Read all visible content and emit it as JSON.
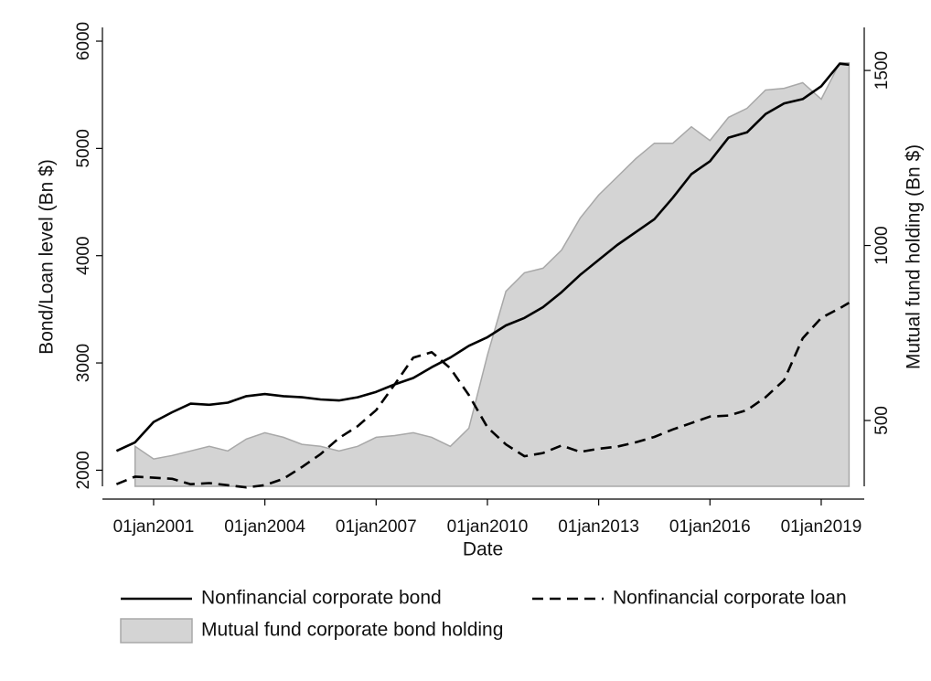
{
  "chart_data": {
    "type": "line",
    "x_label": "Date",
    "y_label": "Bond/Loan level (Bn $)",
    "y2_label": "Mutual fund holding (Bn $)",
    "x": [
      2000,
      2000.5,
      2001,
      2001.5,
      2002,
      2002.5,
      2003,
      2003.5,
      2004,
      2004.5,
      2005,
      2005.5,
      2006,
      2006.5,
      2007,
      2007.5,
      2008,
      2008.5,
      2009,
      2009.5,
      2010,
      2010.5,
      2011,
      2011.5,
      2012,
      2012.5,
      2013,
      2013.5,
      2014,
      2014.5,
      2015,
      2015.5,
      2016,
      2016.5,
      2017,
      2017.5,
      2018,
      2018.5,
      2019,
      2019.5,
      2019.75
    ],
    "xlim": [
      1999.62,
      2020.16
    ],
    "xticks": [
      {
        "value": 2001,
        "label": "01jan2001"
      },
      {
        "value": 2004,
        "label": "01jan2004"
      },
      {
        "value": 2007,
        "label": "01jan2007"
      },
      {
        "value": 2010,
        "label": "01jan2010"
      },
      {
        "value": 2013,
        "label": "01jan2013"
      },
      {
        "value": 2016,
        "label": "01jan2016"
      },
      {
        "value": 2019,
        "label": "01jan2019"
      }
    ],
    "ylim": [
      1850,
      6128
    ],
    "yticks": [
      2000,
      3000,
      4000,
      5000,
      6000
    ],
    "y2lim": [
      312,
      1623
    ],
    "y2ticks": [
      500,
      1000,
      1500
    ],
    "series": [
      {
        "name": "Nonfinancial corporate bond",
        "color": "#000000",
        "dash": "solid",
        "values": [
          2180,
          2260,
          2450,
          2540,
          2620,
          2610,
          2630,
          2690,
          2710,
          2690,
          2680,
          2660,
          2650,
          2680,
          2730,
          2800,
          2860,
          2960,
          3050,
          3160,
          3240,
          3350,
          3420,
          3520,
          3660,
          3820,
          3960,
          4100,
          4220,
          4340,
          4540,
          4760,
          4880,
          5100,
          5150,
          5320,
          5420,
          5460,
          5580,
          5790,
          5780
        ]
      },
      {
        "name": "Nonfinancial corporate loan",
        "color": "#000000",
        "dash": "dashed",
        "values": [
          1870,
          1940,
          1930,
          1920,
          1870,
          1880,
          1860,
          1840,
          1860,
          1920,
          2030,
          2150,
          2300,
          2410,
          2560,
          2800,
          3050,
          3100,
          2950,
          2700,
          2400,
          2240,
          2130,
          2160,
          2230,
          2170,
          2200,
          2220,
          2260,
          2310,
          2380,
          2440,
          2500,
          2510,
          2560,
          2680,
          2840,
          3230,
          3420,
          3510,
          3560
        ]
      },
      {
        "name": "Mutual fund corporate bond holding",
        "color": "#d4d4d4",
        "edge_color": "#a8a8a8",
        "fill": true,
        "axis": "y2",
        "values": [
          null,
          426,
          390,
          400,
          413,
          426,
          413,
          447,
          465,
          452,
          432,
          426,
          413,
          426,
          452,
          457,
          465,
          452,
          426,
          478,
          687,
          869,
          922,
          935,
          987,
          1078,
          1144,
          1196,
          1248,
          1292,
          1292,
          1339,
          1300,
          1366,
          1392,
          1444,
          1449,
          1465,
          1418,
          1522,
          1522
        ]
      }
    ]
  }
}
